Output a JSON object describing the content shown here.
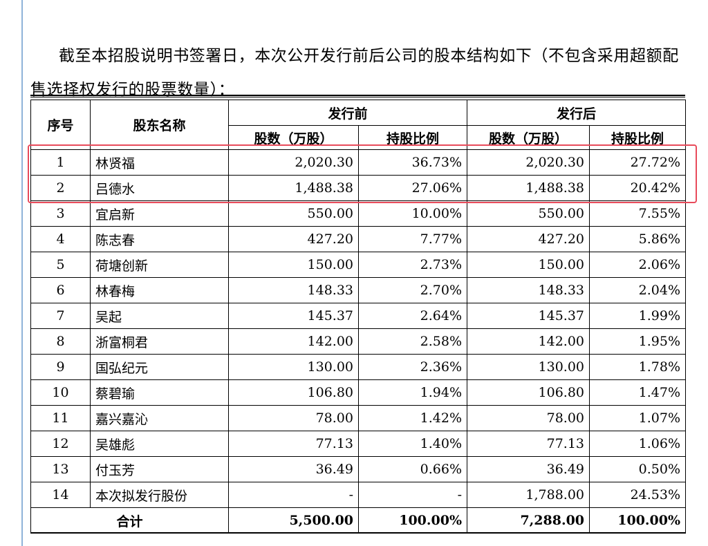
{
  "intro_text": "截至本招股说明书签署日，本次公开发行前后公司的股本结构如下（不包含采用超额配售选择权发行的股票数量）：",
  "table": {
    "headers": {
      "index": "序号",
      "name": "股东名称",
      "before": "发行前",
      "after": "发行后",
      "shares": "股数（万股）",
      "ratio": "持股比例"
    },
    "rows": [
      {
        "no": "1",
        "name": "林贤福",
        "shares_before": "2,020.30",
        "ratio_before": "36.73%",
        "shares_after": "2,020.30",
        "ratio_after": "27.72%"
      },
      {
        "no": "2",
        "name": "吕德水",
        "shares_before": "1,488.38",
        "ratio_before": "27.06%",
        "shares_after": "1,488.38",
        "ratio_after": "20.42%"
      },
      {
        "no": "3",
        "name": "宜启新",
        "shares_before": "550.00",
        "ratio_before": "10.00%",
        "shares_after": "550.00",
        "ratio_after": "7.55%"
      },
      {
        "no": "4",
        "name": "陈志春",
        "shares_before": "427.20",
        "ratio_before": "7.77%",
        "shares_after": "427.20",
        "ratio_after": "5.86%"
      },
      {
        "no": "5",
        "name": "荷塘创新",
        "shares_before": "150.00",
        "ratio_before": "2.73%",
        "shares_after": "150.00",
        "ratio_after": "2.06%"
      },
      {
        "no": "6",
        "name": "林春梅",
        "shares_before": "148.33",
        "ratio_before": "2.70%",
        "shares_after": "148.33",
        "ratio_after": "2.04%"
      },
      {
        "no": "7",
        "name": "吴起",
        "shares_before": "145.37",
        "ratio_before": "2.64%",
        "shares_after": "145.37",
        "ratio_after": "1.99%"
      },
      {
        "no": "8",
        "name": "浙富桐君",
        "shares_before": "142.00",
        "ratio_before": "2.58%",
        "shares_after": "142.00",
        "ratio_after": "1.95%"
      },
      {
        "no": "9",
        "name": "国弘纪元",
        "shares_before": "130.00",
        "ratio_before": "2.36%",
        "shares_after": "130.00",
        "ratio_after": "1.78%"
      },
      {
        "no": "10",
        "name": "蔡碧瑜",
        "shares_before": "106.80",
        "ratio_before": "1.94%",
        "shares_after": "106.80",
        "ratio_after": "1.47%"
      },
      {
        "no": "11",
        "name": "嘉兴嘉沁",
        "shares_before": "78.00",
        "ratio_before": "1.42%",
        "shares_after": "78.00",
        "ratio_after": "1.07%"
      },
      {
        "no": "12",
        "name": "吴雄彪",
        "shares_before": "77.13",
        "ratio_before": "1.40%",
        "shares_after": "77.13",
        "ratio_after": "1.06%"
      },
      {
        "no": "13",
        "name": "付玉芳",
        "shares_before": "36.49",
        "ratio_before": "0.66%",
        "shares_after": "36.49",
        "ratio_after": "0.50%"
      },
      {
        "no": "14",
        "name": "本次拟发行股份",
        "shares_before": "-",
        "ratio_before": "-",
        "shares_after": "1,788.00",
        "ratio_after": "24.53%"
      }
    ],
    "total": {
      "label": "合计",
      "shares_before": "5,500.00",
      "ratio_before": "100.00%",
      "shares_after": "7,288.00",
      "ratio_after": "100.00%"
    }
  },
  "highlight_color": "#e84a5a"
}
